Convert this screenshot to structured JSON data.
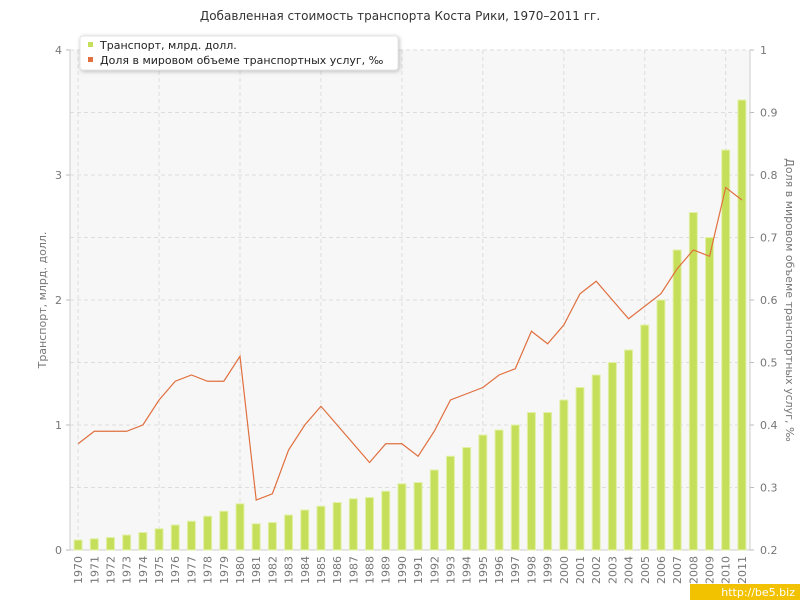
{
  "chart_data": {
    "type": "bar_line",
    "title": "Добавленная стоимость транспорта Коста Рики, 1970–2011 гг.",
    "y_label": "Транспорт, млрд. долл.",
    "y2_label": "Доля в мировом объеме транспортных услуг, ‰",
    "watermark": "http://be5.biz",
    "legend": "top-left",
    "grid": true,
    "categories": [
      "1970",
      "1971",
      "1972",
      "1973",
      "1974",
      "1975",
      "1976",
      "1977",
      "1978",
      "1979",
      "1980",
      "1981",
      "1982",
      "1983",
      "1984",
      "1985",
      "1986",
      "1987",
      "1988",
      "1989",
      "1990",
      "1991",
      "1992",
      "1993",
      "1994",
      "1995",
      "1996",
      "1997",
      "1998",
      "1999",
      "2000",
      "2001",
      "2002",
      "2003",
      "2004",
      "2005",
      "2006",
      "2007",
      "2008",
      "2009",
      "2010",
      "2011"
    ],
    "ylim": [
      0,
      4
    ],
    "yticks": [
      0,
      1,
      2,
      3,
      4
    ],
    "y2lim": [
      0.2,
      1
    ],
    "y2ticks": [
      0.2,
      0.3,
      0.4,
      0.5,
      0.6,
      0.7,
      0.8,
      0.9,
      1
    ],
    "series": [
      {
        "name": "Транспорт, млрд. долл.",
        "type": "bar",
        "color": "#c5df5a",
        "values": [
          0.08,
          0.09,
          0.1,
          0.12,
          0.14,
          0.17,
          0.2,
          0.23,
          0.27,
          0.31,
          0.37,
          0.21,
          0.22,
          0.28,
          0.32,
          0.35,
          0.38,
          0.41,
          0.42,
          0.47,
          0.53,
          0.54,
          0.64,
          0.75,
          0.82,
          0.92,
          0.96,
          1.0,
          1.1,
          1.1,
          1.2,
          1.3,
          1.4,
          1.5,
          1.6,
          1.8,
          2.0,
          2.4,
          2.7,
          2.5,
          3.2,
          3.6
        ]
      },
      {
        "name": "Доля в мировом объеме транспортных услуг, ‰",
        "type": "line",
        "axis": "y2",
        "color": "#e0703f",
        "values": [
          0.37,
          0.39,
          0.39,
          0.39,
          0.4,
          0.44,
          0.47,
          0.48,
          0.47,
          0.47,
          0.51,
          0.28,
          0.29,
          0.36,
          0.4,
          0.43,
          0.4,
          0.37,
          0.34,
          0.37,
          0.37,
          0.35,
          0.39,
          0.44,
          0.45,
          0.46,
          0.48,
          0.49,
          0.55,
          0.53,
          0.56,
          0.61,
          0.63,
          0.6,
          0.57,
          0.59,
          0.61,
          0.65,
          0.68,
          0.67,
          0.78,
          0.76
        ]
      }
    ]
  }
}
